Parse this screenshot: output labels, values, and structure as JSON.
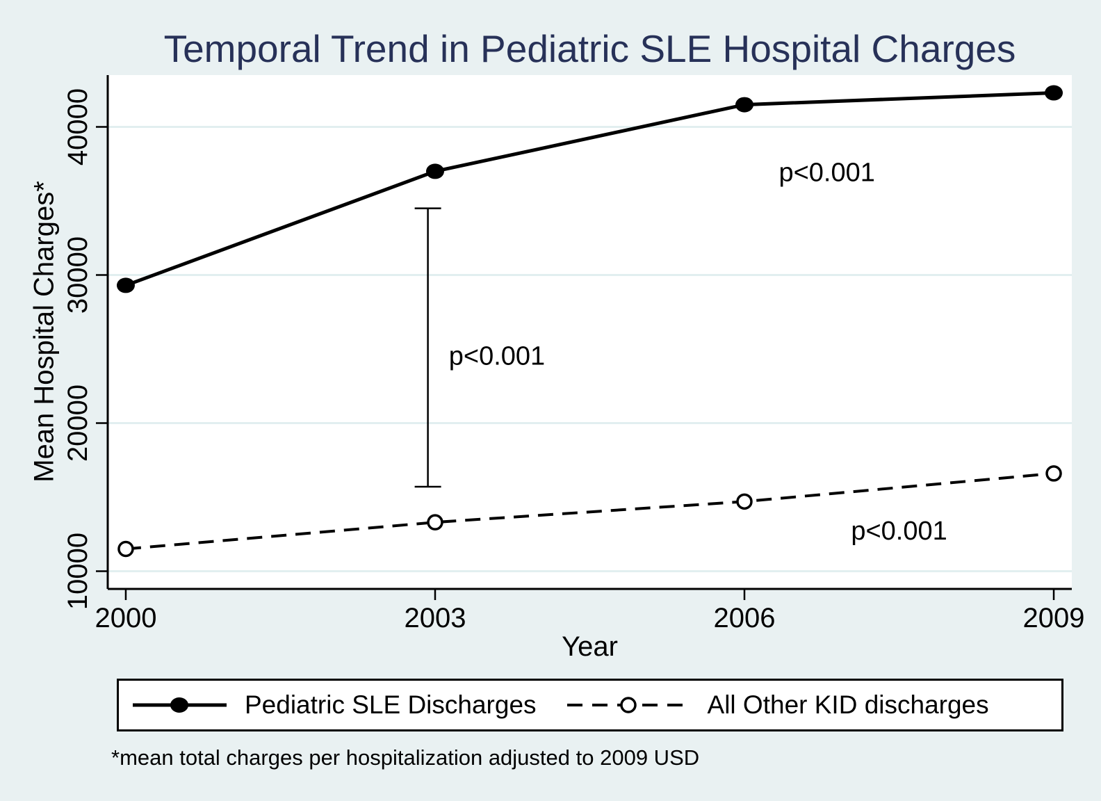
{
  "title": "Temporal Trend in Pediatric SLE Hospital Charges",
  "footnote": "*mean total charges per hospitalization adjusted to 2009 USD",
  "colors": {
    "background": "#e9f1f2",
    "plot_background": "#ffffff",
    "title": "#273158",
    "grid": "#e2eff0",
    "series": "#000000"
  },
  "chart_data": {
    "type": "line",
    "title": "Temporal Trend in Pediatric SLE Hospital Charges",
    "xlabel": "Year",
    "ylabel": "Mean Hospital Charges*",
    "x": [
      2000,
      2003,
      2006,
      2009
    ],
    "xticks": [
      2000,
      2003,
      2006,
      2009
    ],
    "yticks": [
      10000,
      20000,
      30000,
      40000
    ],
    "xlim": [
      1999.825,
      2009.175
    ],
    "ylim": [
      8800,
      43500
    ],
    "grid": true,
    "legend_position": "bottom",
    "series": [
      {
        "name": "Pediatric SLE Discharges",
        "line": "solid",
        "marker": "filled-circle",
        "values": [
          29300,
          37000,
          41500,
          42300
        ]
      },
      {
        "name": "All Other KID discharges",
        "line": "dashed",
        "marker": "open-circle",
        "values": [
          11500,
          13300,
          14700,
          16600
        ]
      }
    ],
    "error_bar": {
      "x": 2002.93,
      "low": 15700,
      "high": 34500
    },
    "annotations": [
      {
        "text": "p<0.001",
        "x": 2006.8,
        "y": 36900
      },
      {
        "text": "p<0.001",
        "x": 2003.6,
        "y": 24500
      },
      {
        "text": "p<0.001",
        "x": 2007.5,
        "y": 12700
      }
    ]
  }
}
